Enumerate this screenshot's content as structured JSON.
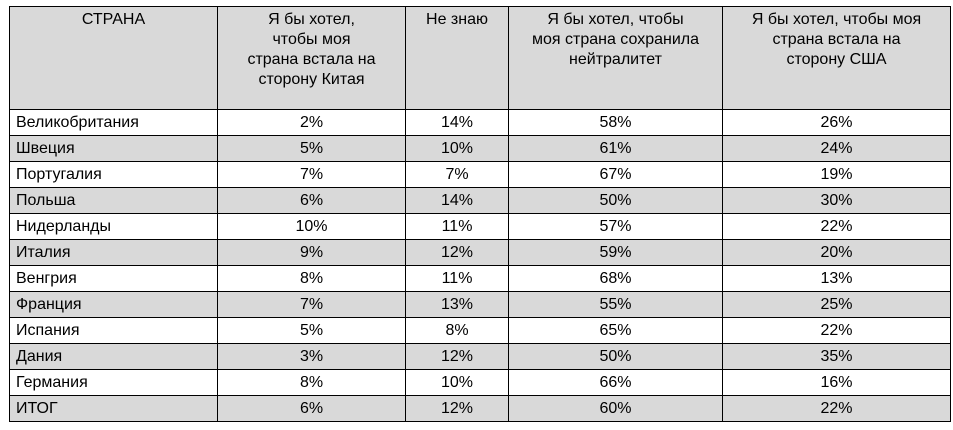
{
  "table": {
    "headers": [
      [
        "СТРАНА"
      ],
      [
        "Я бы хотел,",
        "чтобы моя",
        "страна встала на",
        "сторону Китая"
      ],
      [
        "Не знаю"
      ],
      [
        "Я бы хотел, чтобы",
        "моя страна сохранила",
        "нейтралитет"
      ],
      [
        "Я бы хотел, чтобы моя",
        "страна встала на",
        "сторону США"
      ]
    ],
    "rows": [
      [
        "Великобритания",
        "2%",
        "14%",
        "58%",
        "26%"
      ],
      [
        "Швеция",
        "5%",
        "10%",
        "61%",
        "24%"
      ],
      [
        "Португалия",
        "7%",
        "7%",
        "67%",
        "19%"
      ],
      [
        "Польша",
        "6%",
        "14%",
        "50%",
        "30%"
      ],
      [
        "Нидерланды",
        "10%",
        "11%",
        "57%",
        "22%"
      ],
      [
        "Италия",
        "9%",
        "12%",
        "59%",
        "20%"
      ],
      [
        "Венгрия",
        "8%",
        "11%",
        "68%",
        "13%"
      ],
      [
        "Франция",
        "7%",
        "13%",
        "55%",
        "25%"
      ],
      [
        "Испания",
        "5%",
        "8%",
        "65%",
        "22%"
      ],
      [
        "Дания",
        "3%",
        "12%",
        "50%",
        "35%"
      ],
      [
        "Германия",
        "8%",
        "10%",
        "66%",
        "16%"
      ],
      [
        "ИТОГ",
        "6%",
        "12%",
        "60%",
        "22%"
      ]
    ]
  }
}
